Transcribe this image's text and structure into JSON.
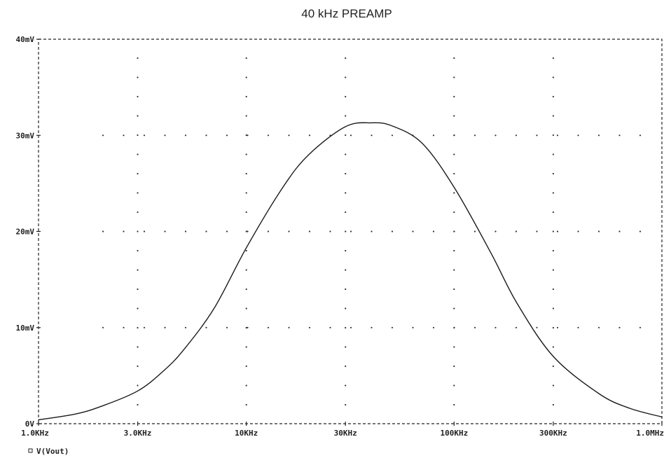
{
  "chart_data": {
    "type": "line",
    "title": "40 kHz PREAMP",
    "x_scale": "log",
    "xlim": [
      1000,
      1000000
    ],
    "ylim": [
      0,
      40
    ],
    "x_tick_values": [
      1000,
      3000,
      10000,
      30000,
      100000,
      300000,
      1000000
    ],
    "x_tick_labels": [
      "1.0KHz",
      "3.0KHz",
      "10KHz",
      "30KHz",
      "100KHz",
      "300KHz",
      "1.0MHz"
    ],
    "y_tick_values": [
      0,
      10,
      20,
      30,
      40
    ],
    "y_tick_labels": [
      "0V",
      "10mV",
      "20mV",
      "30mV",
      "40mV"
    ],
    "grid": "dotted",
    "legend_position": "bottom-left",
    "series": [
      {
        "name": "V(Vout)",
        "marker": "square",
        "color": "#1a1a1a",
        "x": [
          1000,
          1500,
          2000,
          3000,
          4000,
          5000,
          7000,
          10000,
          15000,
          20000,
          30000,
          40000,
          50000,
          70000,
          100000,
          150000,
          200000,
          300000,
          500000,
          700000,
          1000000
        ],
        "y": [
          0.4,
          1.0,
          1.8,
          3.4,
          5.5,
          7.7,
          12.0,
          18.3,
          24.6,
          28.0,
          30.9,
          31.3,
          31.0,
          29.2,
          24.6,
          17.8,
          12.6,
          7.0,
          3.1,
          1.6,
          0.7
        ]
      }
    ]
  }
}
